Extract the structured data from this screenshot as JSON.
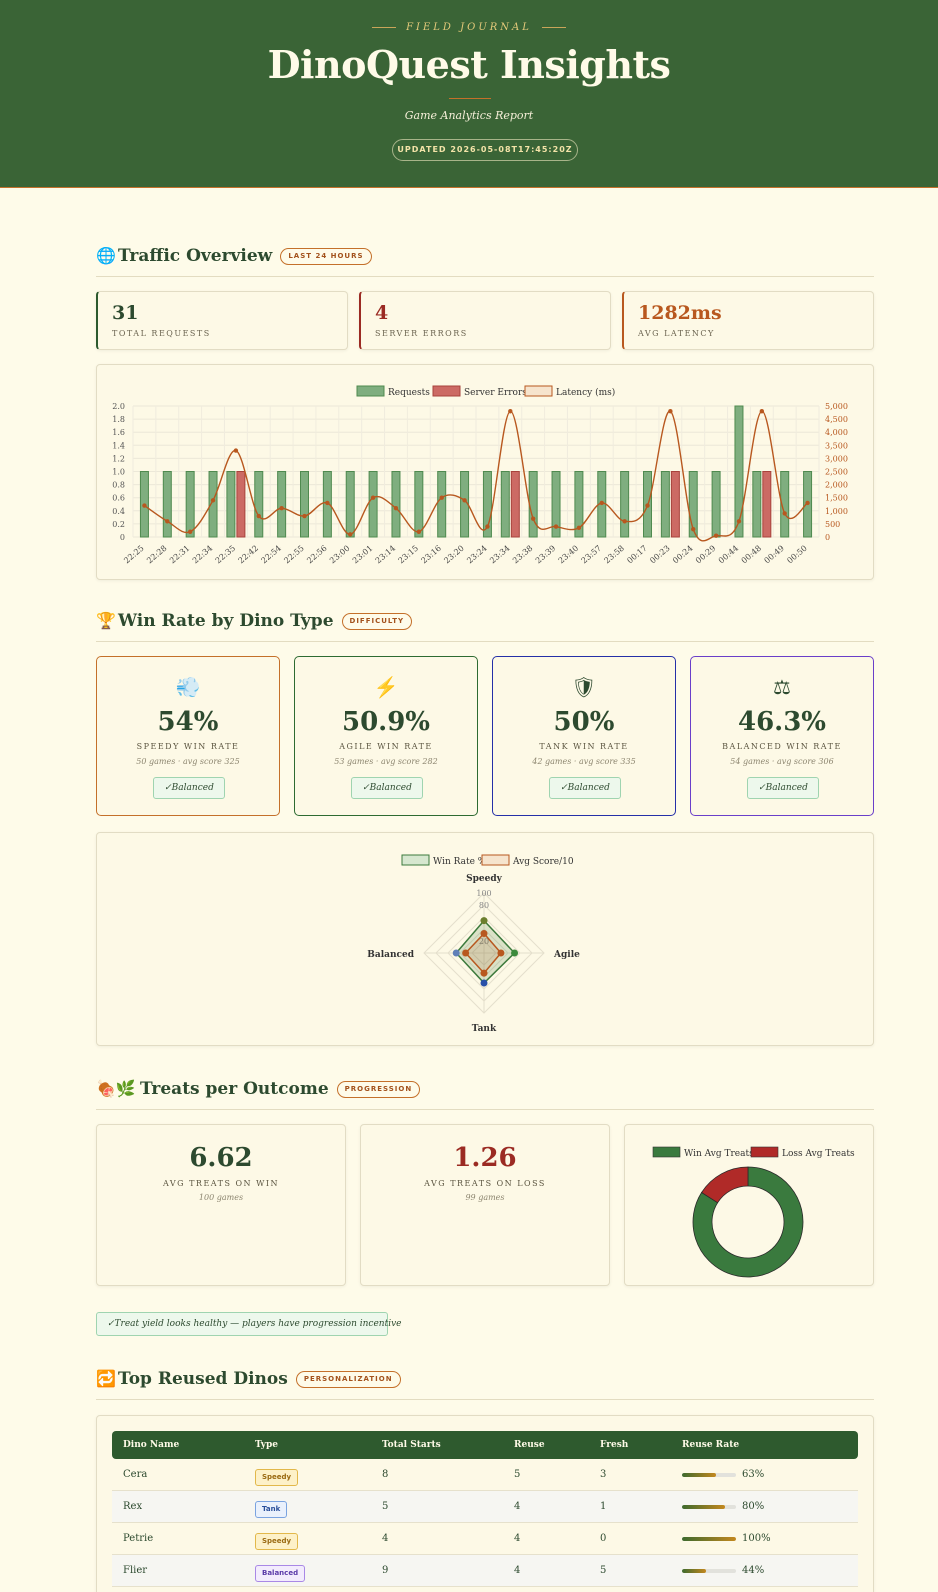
{
  "header": {
    "eyebrow": "FIELD JOURNAL",
    "title": "DinoQuest Insights",
    "subtitle": "Game Analytics Report",
    "updated": "UPDATED 2026-05-08T17:45:20Z"
  },
  "traffic": {
    "icon": "globe-icon",
    "icon_glyph": "🌐",
    "title": "Traffic Overview",
    "badge": "LAST 24 HOURS",
    "stats": [
      {
        "value": "31",
        "label": "TOTAL REQUESTS",
        "color": "#2d5a2e"
      },
      {
        "value": "4",
        "label": "SERVER ERRORS",
        "color": "#9b2b23"
      },
      {
        "value": "1282ms",
        "label": "AVG LATENCY",
        "color": "#b8581f"
      }
    ]
  },
  "winrate": {
    "icon": "trophy-icon",
    "icon_glyph": "🏆",
    "title": "Win Rate by Dino Type",
    "badge": "DIFFICULTY",
    "cards": [
      {
        "icon": "wind-icon",
        "glyph": "💨",
        "pct": "54%",
        "label": "SPEEDY WIN RATE",
        "meta": "50 games · avg score 325",
        "tag": "✓Balanced",
        "border": "#c4702a"
      },
      {
        "icon": "lightning-icon",
        "glyph": "⚡",
        "pct": "50.9%",
        "label": "AGILE WIN RATE",
        "meta": "53 games · avg score 282",
        "tag": "✓Balanced",
        "border": "#2e6b32"
      },
      {
        "icon": "shield-icon",
        "glyph": "🛡",
        "pct": "50%",
        "label": "TANK WIN RATE",
        "meta": "42 games · avg score 335",
        "tag": "✓Balanced",
        "border": "#2530a8"
      },
      {
        "icon": "scales-icon",
        "glyph": "⚖",
        "pct": "46.3%",
        "label": "BALANCED WIN RATE",
        "meta": "54 games · avg score 306",
        "tag": "✓Balanced",
        "border": "#6a3fc9"
      }
    ]
  },
  "treats": {
    "icon": "treats-icon",
    "icon_glyph": "🍖🌿",
    "title": "Treats per Outcome",
    "badge": "PROGRESSION",
    "win": {
      "value": "6.62",
      "label": "AVG TREATS ON WIN",
      "meta": "100 games"
    },
    "loss": {
      "value": "1.26",
      "label": "AVG TREATS ON LOSS",
      "meta": "99 games"
    },
    "note": "✓Treat yield looks healthy — players have progression incentive"
  },
  "reuse": {
    "icon": "repeat-icon",
    "icon_glyph": "🔁",
    "title": "Top Reused Dinos",
    "badge": "PERSONALIZATION",
    "columns": [
      "Dino Name",
      "Type",
      "Total Starts",
      "Reuse",
      "Fresh",
      "Reuse Rate"
    ],
    "rows": [
      {
        "name": "Cera",
        "type": "Speedy",
        "starts": "8",
        "reuse": "5",
        "fresh": "3",
        "rate": 0.63,
        "rate_label": "63%"
      },
      {
        "name": "Rex",
        "type": "Tank",
        "starts": "5",
        "reuse": "4",
        "fresh": "1",
        "rate": 0.8,
        "rate_label": "80%"
      },
      {
        "name": "Petrie",
        "type": "Speedy",
        "starts": "4",
        "reuse": "4",
        "fresh": "0",
        "rate": 1.0,
        "rate_label": "100%"
      },
      {
        "name": "Flier",
        "type": "Balanced",
        "starts": "9",
        "reuse": "4",
        "fresh": "5",
        "rate": 0.44,
        "rate_label": "44%"
      }
    ],
    "type_colors": {
      "Speedy": {
        "bg": "#fdf1c8",
        "border": "#e2b84a",
        "text": "#9a6a12"
      },
      "Tank": {
        "bg": "#eaf1fc",
        "border": "#7aa3e0",
        "text": "#2a4f9a"
      },
      "Balanced": {
        "bg": "#f3ecfd",
        "border": "#a988e6",
        "text": "#5a3aa8"
      }
    }
  },
  "chart_data": [
    {
      "type": "bar",
      "legend": [
        "Requests",
        "Server Errors",
        "Latency (ms)"
      ],
      "categories": [
        "22:25",
        "22:28",
        "22:31",
        "22:34",
        "22:35",
        "22:42",
        "22:54",
        "22:55",
        "22:56",
        "23:00",
        "23:01",
        "23:14",
        "23:15",
        "23:16",
        "23:20",
        "23:24",
        "23:34",
        "23:38",
        "23:39",
        "23:40",
        "23:57",
        "23:58",
        "00:17",
        "00:23",
        "00:24",
        "00:29",
        "00:44",
        "00:48",
        "00:49",
        "00:50"
      ],
      "series": [
        {
          "name": "Requests",
          "values": [
            1,
            1,
            1,
            1,
            1,
            1,
            1,
            1,
            1,
            1,
            1,
            1,
            1,
            1,
            1,
            1,
            1,
            1,
            1,
            1,
            1,
            1,
            1,
            1,
            1,
            1,
            2,
            1,
            1,
            1
          ],
          "color": "#7fae7f"
        },
        {
          "name": "Server Errors",
          "values": [
            0,
            0,
            0,
            0,
            1,
            0,
            0,
            0,
            0,
            0,
            0,
            0,
            0,
            0,
            0,
            0,
            1,
            0,
            0,
            0,
            0,
            0,
            0,
            1,
            0,
            0,
            0,
            1,
            0,
            0
          ],
          "color": "#cc6a64"
        },
        {
          "name": "Latency (ms)",
          "values": [
            1200,
            600,
            200,
            1400,
            3300,
            800,
            1100,
            800,
            1300,
            100,
            1500,
            1100,
            200,
            1500,
            1400,
            400,
            4800,
            700,
            400,
            350,
            1300,
            600,
            1200,
            4800,
            300,
            50,
            600,
            4800,
            900,
            1300
          ],
          "color": "#b8581f"
        }
      ],
      "ylim": [
        0,
        2.0
      ],
      "y2lim": [
        0,
        5000
      ],
      "yticks": [
        "0",
        "0.2",
        "0.4",
        "0.6",
        "0.8",
        "1.0",
        "1.2",
        "1.4",
        "1.6",
        "1.8",
        "2.0"
      ],
      "y2ticks": [
        "0",
        "500",
        "1,000",
        "1,500",
        "2,000",
        "2,500",
        "3,000",
        "3,500",
        "4,000",
        "4,500",
        "5,000"
      ],
      "grid": true,
      "legend_position": "top"
    },
    {
      "type": "radar",
      "legend": [
        "Win Rate %",
        "Avg Score/10"
      ],
      "categories": [
        "Speedy",
        "Agile",
        "Tank",
        "Balanced"
      ],
      "series": [
        {
          "name": "Win Rate %",
          "values": [
            54,
            50.9,
            50,
            46.3
          ],
          "color": "#3c7a3c"
        },
        {
          "name": "Avg Score/10",
          "values": [
            32.5,
            28.2,
            33.5,
            30.6
          ],
          "color": "#b8581f"
        }
      ],
      "rticks": [
        "20",
        "80",
        "100"
      ],
      "rlim": [
        0,
        100
      ],
      "point_colors": [
        "#6b7f2e",
        "#3c8a3c",
        "#2850a8",
        "#6080b8"
      ],
      "legend_position": "top"
    },
    {
      "type": "pie",
      "legend": [
        "Win Avg Treats",
        "Loss Avg Treats"
      ],
      "categories": [
        "Win Avg Treats",
        "Loss Avg Treats"
      ],
      "values": [
        6.62,
        1.26
      ],
      "colors": [
        "#3a7a3e",
        "#b02a28"
      ],
      "donut": true,
      "legend_position": "top"
    }
  ]
}
